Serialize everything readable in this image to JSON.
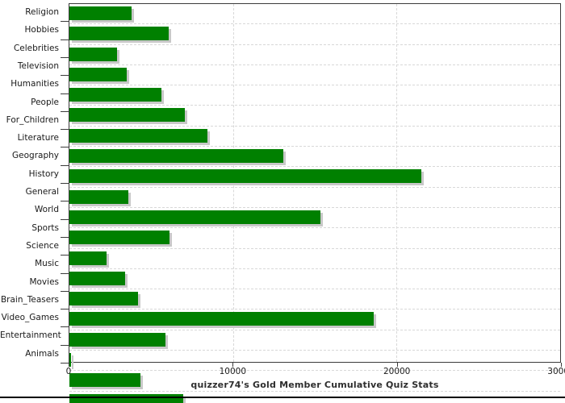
{
  "chart_data": {
    "type": "bar",
    "orientation": "horizontal",
    "title": "quizzer74's Gold Member Cumulative Quiz Stats",
    "categories": [
      "Religion",
      "Hobbies",
      "Celebrities",
      "Television",
      "Humanities",
      "People",
      "For_Children",
      "Literature",
      "Geography",
      "History",
      "General",
      "World",
      "Sports",
      "Science",
      "Music",
      "Movies",
      "Brain_Teasers",
      "Video_Games",
      "Entertainment",
      "Animals"
    ],
    "values": [
      3780,
      6090,
      2930,
      3500,
      5640,
      7070,
      8420,
      13060,
      21530,
      3600,
      15340,
      6120,
      2250,
      3380,
      4190,
      18580,
      5850,
      100,
      4320,
      6980
    ],
    "xlim": [
      0,
      30000
    ],
    "x_ticks": [
      0,
      10000,
      20000,
      30000
    ],
    "x_tick_labels": [
      "0",
      "10000",
      "20000",
      "30000"
    ],
    "xlabel": "",
    "ylabel": "",
    "grid": "dashed; horizontal line at every category boundary, vertical at major x ticks",
    "legend": "none",
    "colors": {
      "bar": "#008000",
      "bar_shadow": "#c8c8c8",
      "gridline": "#d8d8d8",
      "axis": "#3b3b3b",
      "tick_label": "#1a1a1a",
      "title": "#2e2e2e",
      "bottom_rule": "#000000"
    }
  }
}
